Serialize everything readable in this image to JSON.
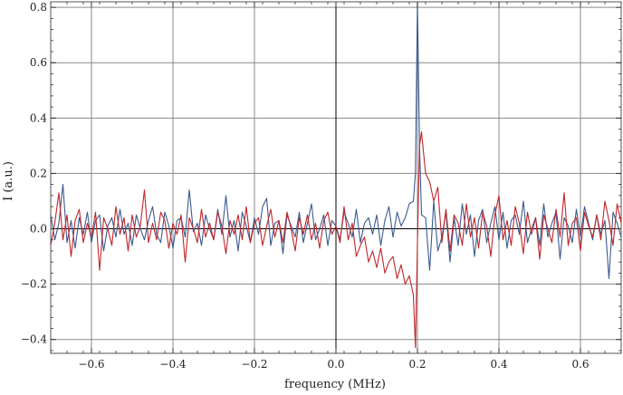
{
  "chart_data": {
    "type": "line",
    "title": "",
    "xlabel": "frequency (MHz)",
    "ylabel": "I (a.u.)",
    "xlim": [
      -0.7,
      0.7
    ],
    "ylim": [
      -0.45,
      0.82
    ],
    "grid": true,
    "x_ticks": [
      -0.6,
      -0.4,
      -0.2,
      0.0,
      0.2,
      0.4,
      0.6
    ],
    "x_tick_labels": [
      "−0.6",
      "−0.4",
      "−0.2",
      "0.0",
      "0.2",
      "0.4",
      "0.6"
    ],
    "y_ticks": [
      -0.4,
      -0.2,
      0.0,
      0.2,
      0.4,
      0.6,
      0.8
    ],
    "y_tick_labels": [
      "−0.4",
      "−0.2",
      "0.0",
      "0.2",
      "0.4",
      "0.6",
      "0.8"
    ],
    "series": [
      {
        "color": "#3b5b8f",
        "x": [
          -0.7,
          -0.69,
          -0.68,
          -0.67,
          -0.66,
          -0.65,
          -0.64,
          -0.63,
          -0.62,
          -0.61,
          -0.6,
          -0.59,
          -0.58,
          -0.57,
          -0.56,
          -0.55,
          -0.54,
          -0.53,
          -0.52,
          -0.51,
          -0.5,
          -0.49,
          -0.48,
          -0.47,
          -0.46,
          -0.45,
          -0.44,
          -0.43,
          -0.42,
          -0.41,
          -0.4,
          -0.39,
          -0.38,
          -0.37,
          -0.36,
          -0.35,
          -0.34,
          -0.33,
          -0.32,
          -0.31,
          -0.3,
          -0.29,
          -0.28,
          -0.27,
          -0.26,
          -0.25,
          -0.24,
          -0.23,
          -0.22,
          -0.21,
          -0.2,
          -0.19,
          -0.18,
          -0.17,
          -0.16,
          -0.15,
          -0.14,
          -0.13,
          -0.12,
          -0.11,
          -0.1,
          -0.09,
          -0.08,
          -0.07,
          -0.06,
          -0.05,
          -0.04,
          -0.03,
          -0.02,
          -0.01,
          0.0,
          0.01,
          0.02,
          0.03,
          0.04,
          0.05,
          0.06,
          0.07,
          0.08,
          0.09,
          0.1,
          0.11,
          0.12,
          0.13,
          0.14,
          0.15,
          0.16,
          0.17,
          0.18,
          0.19,
          0.195,
          0.2,
          0.205,
          0.21,
          0.22,
          0.23,
          0.24,
          0.25,
          0.26,
          0.27,
          0.28,
          0.29,
          0.3,
          0.31,
          0.32,
          0.33,
          0.34,
          0.35,
          0.36,
          0.37,
          0.38,
          0.39,
          0.4,
          0.41,
          0.42,
          0.43,
          0.44,
          0.45,
          0.46,
          0.47,
          0.48,
          0.49,
          0.5,
          0.51,
          0.52,
          0.53,
          0.54,
          0.55,
          0.56,
          0.57,
          0.58,
          0.59,
          0.6,
          0.61,
          0.62,
          0.63,
          0.64,
          0.65,
          0.66,
          0.67,
          0.68,
          0.69,
          0.7
        ],
        "y": [
          0.05,
          -0.04,
          0.02,
          0.16,
          -0.05,
          0.03,
          -0.07,
          0.04,
          -0.02,
          0.06,
          -0.05,
          0.03,
          0.05,
          -0.08,
          0.01,
          0.04,
          -0.03,
          0.07,
          -0.02,
          0.02,
          -0.06,
          0.05,
          0.0,
          -0.04,
          0.03,
          0.08,
          -0.02,
          -0.05,
          0.06,
          0.01,
          -0.07,
          0.03,
          0.04,
          -0.03,
          0.14,
          -0.01,
          0.02,
          -0.06,
          0.05,
          0.0,
          -0.04,
          0.07,
          -0.02,
          0.12,
          -0.03,
          0.03,
          -0.08,
          0.06,
          0.01,
          -0.05,
          0.04,
          -0.02,
          0.08,
          0.11,
          -0.06,
          0.02,
          0.03,
          -0.09,
          0.05,
          0.01,
          -0.03,
          0.06,
          -0.05,
          0.02,
          0.09,
          -0.04,
          0.0,
          0.05,
          -0.06,
          0.03,
          0.01,
          -0.04,
          0.06,
          0.02,
          -0.03,
          0.07,
          -0.05,
          0.02,
          0.04,
          -0.02,
          0.05,
          -0.06,
          0.03,
          0.08,
          -0.03,
          0.06,
          0.01,
          0.04,
          0.09,
          0.1,
          0.2,
          0.82,
          0.3,
          0.05,
          0.04,
          -0.15,
          0.1,
          -0.08,
          -0.03,
          0.06,
          -0.12,
          0.04,
          -0.06,
          0.09,
          -0.02,
          0.05,
          -0.1,
          0.03,
          0.07,
          -0.05,
          0.02,
          0.08,
          -0.04,
          0.06,
          -0.07,
          0.03,
          0.05,
          -0.02,
          0.1,
          -0.05,
          0.0,
          0.04,
          -0.06,
          0.09,
          -0.03,
          0.02,
          0.06,
          -0.11,
          0.04,
          0.01,
          -0.05,
          0.07,
          -0.03,
          0.08,
          0.02,
          -0.04,
          0.05,
          -0.02,
          0.03,
          -0.18,
          0.06,
          0.02,
          -0.03
        ]
      },
      {
        "color": "#c0262a",
        "x": [
          -0.7,
          -0.69,
          -0.68,
          -0.67,
          -0.66,
          -0.65,
          -0.64,
          -0.63,
          -0.62,
          -0.61,
          -0.6,
          -0.59,
          -0.58,
          -0.57,
          -0.56,
          -0.55,
          -0.54,
          -0.53,
          -0.52,
          -0.51,
          -0.5,
          -0.49,
          -0.48,
          -0.47,
          -0.46,
          -0.45,
          -0.44,
          -0.43,
          -0.42,
          -0.41,
          -0.4,
          -0.39,
          -0.38,
          -0.37,
          -0.36,
          -0.35,
          -0.34,
          -0.33,
          -0.32,
          -0.31,
          -0.3,
          -0.29,
          -0.28,
          -0.27,
          -0.26,
          -0.25,
          -0.24,
          -0.23,
          -0.22,
          -0.21,
          -0.2,
          -0.19,
          -0.18,
          -0.17,
          -0.16,
          -0.15,
          -0.14,
          -0.13,
          -0.12,
          -0.11,
          -0.1,
          -0.09,
          -0.08,
          -0.07,
          -0.06,
          -0.05,
          -0.04,
          -0.03,
          -0.02,
          -0.01,
          0.0,
          0.01,
          0.02,
          0.03,
          0.04,
          0.05,
          0.06,
          0.07,
          0.08,
          0.09,
          0.1,
          0.11,
          0.12,
          0.13,
          0.14,
          0.15,
          0.16,
          0.17,
          0.18,
          0.19,
          0.195,
          0.2,
          0.205,
          0.21,
          0.22,
          0.23,
          0.24,
          0.25,
          0.26,
          0.27,
          0.28,
          0.29,
          0.3,
          0.31,
          0.32,
          0.33,
          0.34,
          0.35,
          0.36,
          0.37,
          0.38,
          0.39,
          0.4,
          0.41,
          0.42,
          0.43,
          0.44,
          0.45,
          0.46,
          0.47,
          0.48,
          0.49,
          0.5,
          0.51,
          0.52,
          0.53,
          0.54,
          0.55,
          0.56,
          0.57,
          0.58,
          0.59,
          0.6,
          0.61,
          0.62,
          0.63,
          0.64,
          0.65,
          0.66,
          0.67,
          0.68,
          0.69,
          0.7
        ],
        "y": [
          -0.06,
          0.02,
          0.13,
          -0.04,
          0.05,
          -0.1,
          0.03,
          0.07,
          -0.05,
          0.02,
          -0.03,
          0.06,
          -0.15,
          0.04,
          0.0,
          -0.06,
          0.08,
          -0.02,
          0.04,
          -0.08,
          0.05,
          -0.03,
          0.01,
          0.14,
          -0.05,
          0.02,
          -0.04,
          0.06,
          0.03,
          -0.07,
          0.02,
          -0.02,
          0.05,
          -0.12,
          0.04,
          0.0,
          -0.05,
          0.07,
          -0.03,
          0.02,
          -0.04,
          0.06,
          0.01,
          -0.09,
          0.03,
          -0.02,
          0.05,
          -0.04,
          0.08,
          -0.05,
          0.02,
          0.04,
          -0.06,
          0.01,
          0.07,
          -0.03,
          0.03,
          -0.05,
          0.06,
          0.0,
          -0.08,
          0.04,
          -0.02,
          0.05,
          -0.04,
          0.02,
          -0.07,
          0.03,
          0.06,
          -0.02,
          0.01,
          -0.05,
          0.08,
          -0.04,
          0.02,
          -0.1,
          -0.06,
          -0.03,
          -0.12,
          -0.08,
          -0.14,
          -0.07,
          -0.16,
          -0.12,
          -0.1,
          -0.18,
          -0.13,
          -0.2,
          -0.17,
          -0.24,
          -0.43,
          -0.05,
          0.3,
          0.35,
          0.2,
          0.17,
          0.1,
          0.15,
          -0.05,
          0.07,
          -0.08,
          0.05,
          0.02,
          -0.06,
          0.09,
          -0.03,
          0.04,
          -0.07,
          0.06,
          0.01,
          -0.1,
          0.05,
          0.12,
          -0.04,
          0.03,
          -0.06,
          0.08,
          0.02,
          -0.09,
          0.06,
          -0.02,
          0.04,
          -0.11,
          0.05,
          0.0,
          -0.05,
          0.07,
          -0.03,
          0.13,
          -0.06,
          0.02,
          0.04,
          -0.08,
          0.06,
          0.01,
          -0.03,
          0.05,
          -0.04,
          0.1,
          0.03,
          -0.06,
          0.09,
          0.02
        ]
      }
    ]
  }
}
